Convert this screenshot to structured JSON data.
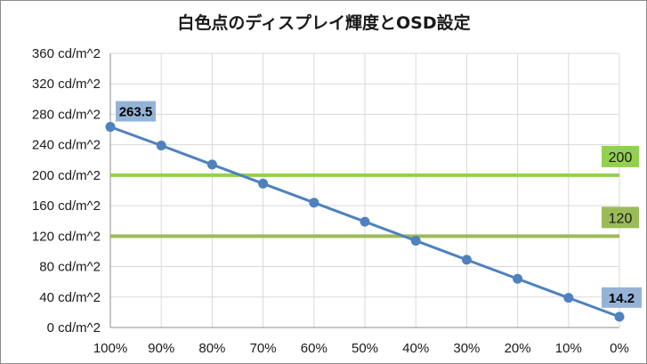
{
  "chart_data": {
    "type": "line",
    "title": "白色点のディスプレイ輝度とOSD設定",
    "categories": [
      "100%",
      "90%",
      "80%",
      "70%",
      "60%",
      "50%",
      "40%",
      "30%",
      "20%",
      "10%",
      "0%"
    ],
    "series": [
      {
        "values": [
          263.5,
          239,
          214,
          189,
          164,
          139,
          114,
          89,
          64,
          39,
          14.2
        ],
        "color": "#4f81bd"
      }
    ],
    "reference_lines": [
      {
        "value": 200,
        "label": "200",
        "color": "#92d050"
      },
      {
        "value": 120,
        "label": "120",
        "color": "#9bbb59"
      }
    ],
    "data_labels": [
      {
        "index": 0,
        "text": "263.5"
      },
      {
        "index": 10,
        "text": "14.2"
      }
    ],
    "y_ticks": [
      "0 cd/m^2",
      "40 cd/m^2",
      "80 cd/m^2",
      "120 cd/m^2",
      "160 cd/m^2",
      "200 cd/m^2",
      "240 cd/m^2",
      "280 cd/m^2",
      "320 cd/m^2",
      "360 cd/m^2"
    ],
    "ylim": [
      0,
      360
    ],
    "grid": true,
    "legend": "none"
  }
}
